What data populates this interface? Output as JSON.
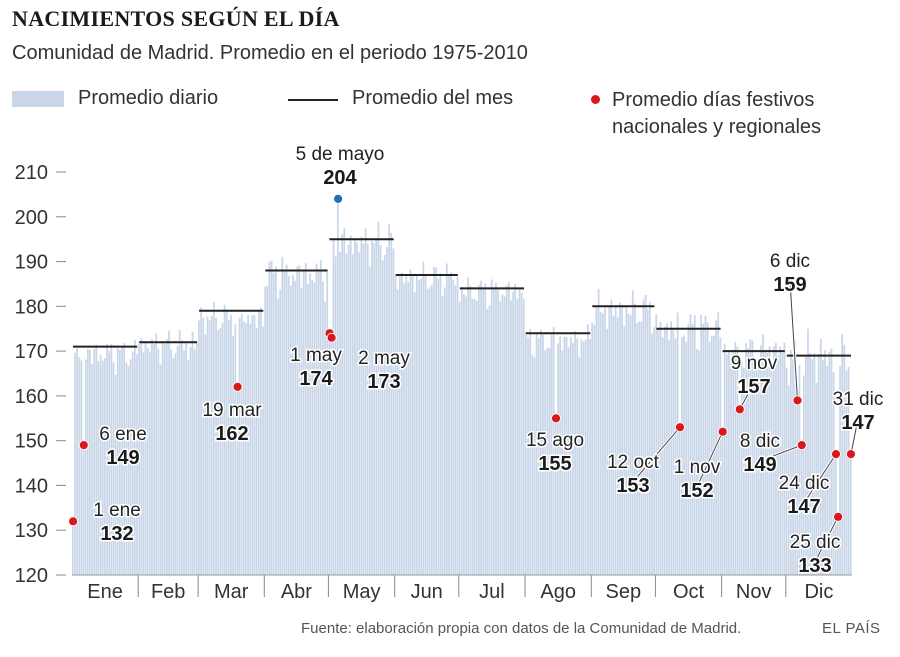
{
  "header": {
    "title": "NACIMIENTOS SEGÚN EL DÍA",
    "subtitle": "Comunidad de Madrid. Promedio en el periodo 1975-2010"
  },
  "legend": {
    "daily": "Promedio diario",
    "monthly": "Promedio del mes",
    "holidays": "Promedio días festivos nacionales y regionales"
  },
  "footer": {
    "source": "Fuente: elaboración propia con datos de la Comunidad de Madrid.",
    "brand": "EL PAÍS"
  },
  "colors": {
    "bars": "#c9d6e8",
    "month_line": "#222222",
    "holiday": "#d7191c",
    "highlight": "#1f6fb2"
  },
  "chart_data": {
    "type": "bar",
    "ylim": [
      120,
      210
    ],
    "yticks": [
      120,
      130,
      140,
      150,
      160,
      170,
      180,
      190,
      200,
      210
    ],
    "months": [
      {
        "label": "Ene",
        "days": 31,
        "avg": 171,
        "base": 170,
        "amp": 3
      },
      {
        "label": "Feb",
        "days": 28,
        "avg": 172,
        "base": 172,
        "amp": 3
      },
      {
        "label": "Mar",
        "days": 31,
        "avg": 179,
        "base": 178,
        "amp": 3
      },
      {
        "label": "Abr",
        "days": 30,
        "avg": 188,
        "base": 188,
        "amp": 4
      },
      {
        "label": "May",
        "days": 31,
        "avg": 195,
        "base": 195,
        "amp": 4
      },
      {
        "label": "Jun",
        "days": 30,
        "avg": 187,
        "base": 187,
        "amp": 3
      },
      {
        "label": "Jul",
        "days": 31,
        "avg": 184,
        "base": 184,
        "amp": 3
      },
      {
        "label": "Ago",
        "days": 31,
        "avg": 174,
        "base": 173,
        "amp": 3
      },
      {
        "label": "Sep",
        "days": 30,
        "avg": 180,
        "base": 180,
        "amp": 4
      },
      {
        "label": "Oct",
        "days": 31,
        "avg": 175,
        "base": 176,
        "amp": 4
      },
      {
        "label": "Nov",
        "days": 30,
        "avg": 170,
        "base": 171,
        "amp": 3
      },
      {
        "label": "Dic",
        "days": 31,
        "avg": 169,
        "base": 170,
        "amp": 5
      }
    ],
    "holidays": [
      {
        "day": 1,
        "value": 132,
        "date": "1 ene",
        "value_label": "132"
      },
      {
        "day": 6,
        "value": 149,
        "date": "6 ene",
        "value_label": "149"
      },
      {
        "day": 78,
        "value": 162,
        "date": "19 mar",
        "value_label": "162"
      },
      {
        "day": 121,
        "value": 174,
        "date": "1 may",
        "value_label": "174"
      },
      {
        "day": 122,
        "value": 173,
        "date": "2 may",
        "value_label": "173"
      },
      {
        "day": 125,
        "value": 204,
        "date": "5 de mayo",
        "value_label": "204",
        "highlight": true
      },
      {
        "day": 227,
        "value": 155,
        "date": "15 ago",
        "value_label": "155"
      },
      {
        "day": 285,
        "value": 153,
        "date": "12 oct",
        "value_label": "153"
      },
      {
        "day": 305,
        "value": 152,
        "date": "1 nov",
        "value_label": "152"
      },
      {
        "day": 313,
        "value": 157,
        "date": "9 nov",
        "value_label": "157"
      },
      {
        "day": 340,
        "value": 159,
        "date": "6 dic",
        "value_label": "159"
      },
      {
        "day": 342,
        "value": 149,
        "date": "8 dic",
        "value_label": "149"
      },
      {
        "day": 358,
        "value": 147,
        "date": "24 dic",
        "value_label": "147"
      },
      {
        "day": 359,
        "value": 133,
        "date": "25 dic",
        "value_label": "133"
      },
      {
        "day": 365,
        "value": 147,
        "date": "31 dic",
        "value_label": "147"
      }
    ]
  }
}
